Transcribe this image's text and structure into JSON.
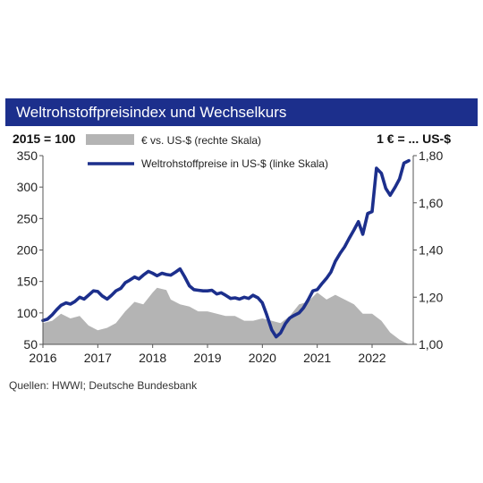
{
  "header": {
    "title": "Weltrohstoffpreisindex und Wechselkurs"
  },
  "chart_data": {
    "type": "line",
    "title": "Weltrohstoffpreisindex und Wechselkurs",
    "left_axis_label": "2015 = 100",
    "right_axis_label": "1 € = ... US-$",
    "x_range": [
      2016,
      2022.75
    ],
    "x_ticks": [
      2016,
      2017,
      2018,
      2019,
      2020,
      2021,
      2022
    ],
    "x_tick_labels": [
      "2016",
      "2017",
      "2018",
      "2019",
      "2020",
      "2021",
      "2022"
    ],
    "y_left": {
      "range": [
        50,
        350
      ],
      "ticks": [
        50,
        100,
        150,
        200,
        250,
        300,
        350
      ],
      "tick_labels": [
        "50",
        "100",
        "150",
        "200",
        "250",
        "300",
        "350"
      ]
    },
    "y_right": {
      "range": [
        1.0,
        1.8
      ],
      "ticks": [
        1.0,
        1.2,
        1.4,
        1.6,
        1.8
      ],
      "tick_labels": [
        "1,00",
        "1,20",
        "1,40",
        "1,60",
        "1,80"
      ]
    },
    "grid": false,
    "legend_position": "top",
    "series": [
      {
        "name": "€ vs. US-$ (rechte Skala)",
        "type": "area",
        "axis": "right",
        "color": "#b4b4b4",
        "x": [
          2016.0,
          2016.17,
          2016.33,
          2016.5,
          2016.67,
          2016.83,
          2017.0,
          2017.17,
          2017.33,
          2017.5,
          2017.67,
          2017.83,
          2018.0,
          2018.08,
          2018.25,
          2018.33,
          2018.5,
          2018.67,
          2018.83,
          2019.0,
          2019.17,
          2019.33,
          2019.5,
          2019.67,
          2019.83,
          2020.0,
          2020.17,
          2020.33,
          2020.5,
          2020.67,
          2020.83,
          2021.0,
          2021.17,
          2021.33,
          2021.5,
          2021.67,
          2021.83,
          2022.0,
          2022.17,
          2022.33,
          2022.5,
          2022.58,
          2022.67
        ],
        "y": [
          1.09,
          1.1,
          1.13,
          1.11,
          1.12,
          1.08,
          1.06,
          1.07,
          1.09,
          1.14,
          1.18,
          1.17,
          1.22,
          1.24,
          1.23,
          1.19,
          1.17,
          1.16,
          1.14,
          1.14,
          1.13,
          1.12,
          1.12,
          1.1,
          1.1,
          1.11,
          1.1,
          1.09,
          1.12,
          1.17,
          1.18,
          1.22,
          1.19,
          1.21,
          1.19,
          1.17,
          1.13,
          1.13,
          1.1,
          1.05,
          1.02,
          1.01,
          1.0
        ]
      },
      {
        "name": "Weltrohstoffpreise in US-$ (linke Skala)",
        "type": "line",
        "axis": "left",
        "color": "#1c2f8c",
        "x": [
          2016.0,
          2016.08,
          2016.17,
          2016.25,
          2016.33,
          2016.42,
          2016.5,
          2016.58,
          2016.67,
          2016.75,
          2016.83,
          2016.92,
          2017.0,
          2017.08,
          2017.17,
          2017.25,
          2017.33,
          2017.42,
          2017.5,
          2017.58,
          2017.67,
          2017.75,
          2017.83,
          2017.92,
          2018.0,
          2018.08,
          2018.17,
          2018.25,
          2018.33,
          2018.42,
          2018.5,
          2018.58,
          2018.67,
          2018.75,
          2018.83,
          2018.92,
          2019.0,
          2019.08,
          2019.17,
          2019.25,
          2019.33,
          2019.42,
          2019.5,
          2019.58,
          2019.67,
          2019.75,
          2019.83,
          2019.92,
          2020.0,
          2020.08,
          2020.17,
          2020.25,
          2020.33,
          2020.42,
          2020.5,
          2020.58,
          2020.67,
          2020.75,
          2020.83,
          2020.92,
          2021.0,
          2021.08,
          2021.17,
          2021.25,
          2021.33,
          2021.42,
          2021.5,
          2021.58,
          2021.67,
          2021.75,
          2021.83,
          2021.92,
          2022.0,
          2022.08,
          2022.17,
          2022.25,
          2022.33,
          2022.42,
          2022.5,
          2022.58,
          2022.67
        ],
        "y": [
          88,
          90,
          97,
          105,
          112,
          116,
          114,
          118,
          125,
          122,
          128,
          135,
          134,
          127,
          122,
          128,
          135,
          139,
          148,
          152,
          157,
          154,
          160,
          166,
          163,
          159,
          163,
          161,
          160,
          165,
          170,
          158,
          143,
          137,
          136,
          135,
          135,
          136,
          130,
          132,
          128,
          123,
          124,
          122,
          125,
          123,
          128,
          124,
          116,
          97,
          73,
          62,
          68,
          83,
          92,
          96,
          100,
          108,
          120,
          135,
          137,
          146,
          155,
          165,
          182,
          195,
          205,
          218,
          232,
          245,
          225,
          258,
          261,
          330,
          322,
          298,
          287,
          300,
          313,
          338,
          342
        ]
      }
    ]
  },
  "source": {
    "text": "Quellen: HWWI; Deutsche Bundesbank"
  }
}
